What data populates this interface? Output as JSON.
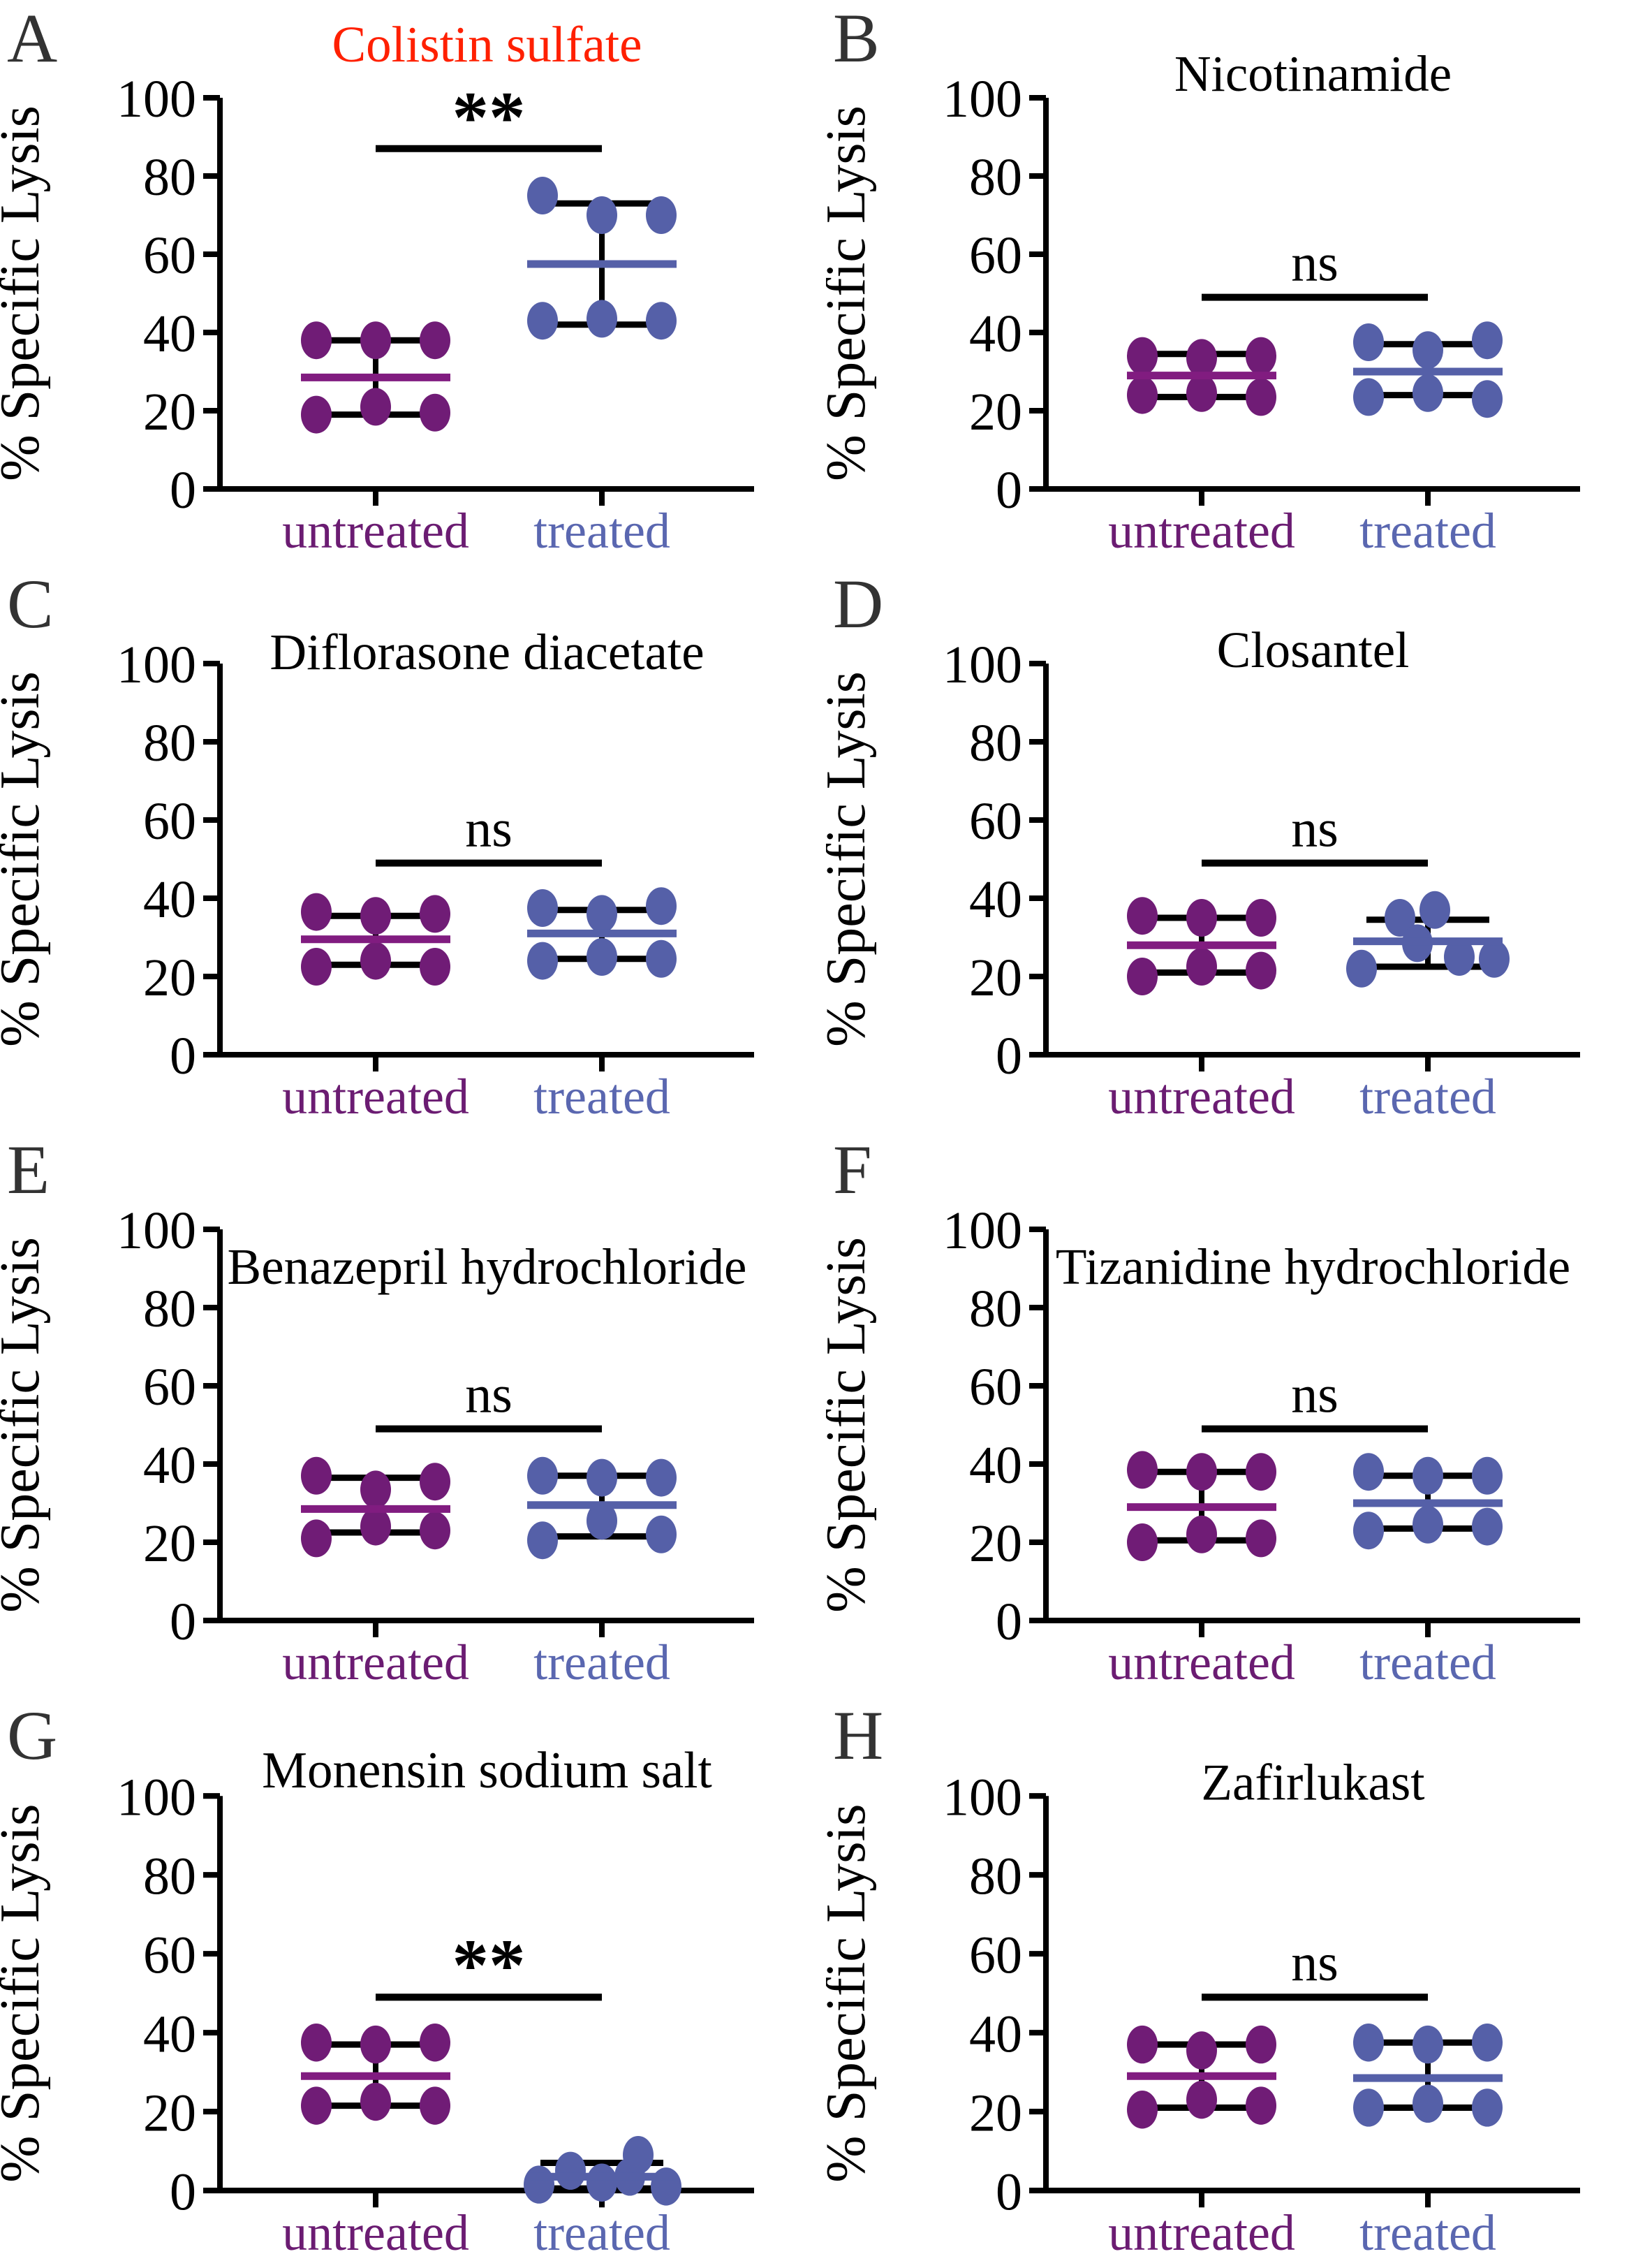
{
  "figure": {
    "ylabel": "% Specific Lysis",
    "yticks": [
      0,
      20,
      40,
      60,
      80,
      100
    ],
    "ylim": [
      0,
      100
    ],
    "group_labels": [
      "untreated",
      "treated"
    ],
    "colors": {
      "untreated_dot": "#701C76",
      "untreated_median": "#811C80",
      "untreated_label": "#6B1C72",
      "treated_dot": "#5560A8",
      "treated_median": "#5560A8",
      "treated_label": "#5A67B0",
      "axis": "#000000",
      "significance": "#000000",
      "panel_letter": "#333333",
      "title_highlight": "#FF2000",
      "title_default": "#000000"
    }
  },
  "chart_data": [
    {
      "type": "scatter",
      "letter": "A",
      "title": "Colistin sulfate",
      "title_color": "#FF2000",
      "title_y": 88,
      "significance": {
        "label": "**",
        "bar_value": 87
      },
      "ylabel": "% Specific Lysis",
      "groups": [
        {
          "label": "untreated",
          "median": 28.5,
          "whisker_low": 19,
          "whisker_high": 38,
          "points": [
            {
              "dx": -85,
              "v": 38
            },
            {
              "dx": 0,
              "v": 38
            },
            {
              "dx": 85,
              "v": 38
            },
            {
              "dx": -85,
              "v": 19
            },
            {
              "dx": 0,
              "v": 21
            },
            {
              "dx": 85,
              "v": 19.5
            }
          ]
        },
        {
          "label": "treated",
          "median": 57.5,
          "whisker_low": 42,
          "whisker_high": 73,
          "points": [
            {
              "dx": -85,
              "v": 75
            },
            {
              "dx": 0,
              "v": 70
            },
            {
              "dx": 85,
              "v": 70
            },
            {
              "dx": -85,
              "v": 43
            },
            {
              "dx": 0,
              "v": 43.5
            },
            {
              "dx": 85,
              "v": 43
            }
          ]
        }
      ]
    },
    {
      "type": "scatter",
      "letter": "B",
      "title": "Nicotinamide",
      "title_color": "#000000",
      "title_y": 130,
      "significance": {
        "label": "ns",
        "bar_value": 49
      },
      "ylabel": "% Specific Lysis",
      "groups": [
        {
          "label": "untreated",
          "median": 29,
          "whisker_low": 23.5,
          "whisker_high": 34.5,
          "points": [
            {
              "dx": -85,
              "v": 34
            },
            {
              "dx": 0,
              "v": 33.5
            },
            {
              "dx": 85,
              "v": 34
            },
            {
              "dx": -85,
              "v": 24
            },
            {
              "dx": 0,
              "v": 24.5
            },
            {
              "dx": 85,
              "v": 23.5
            }
          ]
        },
        {
          "label": "treated",
          "median": 30,
          "whisker_low": 24,
          "whisker_high": 37,
          "points": [
            {
              "dx": -85,
              "v": 37.5
            },
            {
              "dx": 0,
              "v": 35.5
            },
            {
              "dx": 85,
              "v": 38
            },
            {
              "dx": -85,
              "v": 23.5
            },
            {
              "dx": 0,
              "v": 24.5
            },
            {
              "dx": 85,
              "v": 23
            }
          ]
        }
      ]
    },
    {
      "type": "scatter",
      "letter": "C",
      "title": "Diflorasone diacetate",
      "title_color": "#000000",
      "title_y": 148,
      "significance": {
        "label": "ns",
        "bar_value": 49
      },
      "ylabel": "% Specific Lysis",
      "groups": [
        {
          "label": "untreated",
          "median": 29.5,
          "whisker_low": 23,
          "whisker_high": 35.5,
          "points": [
            {
              "dx": -85,
              "v": 36.5
            },
            {
              "dx": 0,
              "v": 35.5
            },
            {
              "dx": 85,
              "v": 36
            },
            {
              "dx": -85,
              "v": 22.5
            },
            {
              "dx": 0,
              "v": 24
            },
            {
              "dx": 85,
              "v": 22.5
            }
          ]
        },
        {
          "label": "treated",
          "median": 31,
          "whisker_low": 24.5,
          "whisker_high": 37,
          "points": [
            {
              "dx": -85,
              "v": 37.5
            },
            {
              "dx": 0,
              "v": 36
            },
            {
              "dx": 85,
              "v": 38
            },
            {
              "dx": -85,
              "v": 24
            },
            {
              "dx": 0,
              "v": 25
            },
            {
              "dx": 85,
              "v": 24.5
            }
          ]
        }
      ]
    },
    {
      "type": "scatter",
      "letter": "D",
      "title": "Closantel",
      "title_color": "#000000",
      "title_y": 145,
      "significance": {
        "label": "ns",
        "bar_value": 49
      },
      "ylabel": "% Specific Lysis",
      "groups": [
        {
          "label": "untreated",
          "median": 28,
          "whisker_low": 21,
          "whisker_high": 35,
          "points": [
            {
              "dx": -85,
              "v": 35.5
            },
            {
              "dx": 0,
              "v": 35
            },
            {
              "dx": 85,
              "v": 35
            },
            {
              "dx": -85,
              "v": 20
            },
            {
              "dx": 0,
              "v": 22.5
            },
            {
              "dx": 85,
              "v": 21.5
            }
          ]
        },
        {
          "label": "treated",
          "median": 29,
          "whisker_low": 22.5,
          "whisker_high": 34.5,
          "points": [
            {
              "dx": -95,
              "v": 22
            },
            {
              "dx": -40,
              "v": 35
            },
            {
              "dx": 10,
              "v": 37
            },
            {
              "dx": -15,
              "v": 28.5
            },
            {
              "dx": 45,
              "v": 25
            },
            {
              "dx": 95,
              "v": 24.5
            }
          ]
        }
      ]
    },
    {
      "type": "scatter",
      "letter": "E",
      "title": "Benazepril hydrochloride",
      "title_color": "#000000",
      "title_y": 218,
      "significance": {
        "label": "ns",
        "bar_value": 49
      },
      "ylabel": "% Specific Lysis",
      "groups": [
        {
          "label": "untreated",
          "median": 28.5,
          "whisker_low": 22.5,
          "whisker_high": 36.5,
          "points": [
            {
              "dx": -85,
              "v": 37
            },
            {
              "dx": 0,
              "v": 33.5
            },
            {
              "dx": 85,
              "v": 35.5
            },
            {
              "dx": -85,
              "v": 21
            },
            {
              "dx": 0,
              "v": 24
            },
            {
              "dx": 85,
              "v": 23
            }
          ]
        },
        {
          "label": "treated",
          "median": 29.5,
          "whisker_low": 21.5,
          "whisker_high": 37,
          "points": [
            {
              "dx": -85,
              "v": 37
            },
            {
              "dx": 0,
              "v": 36.5
            },
            {
              "dx": 85,
              "v": 36.5
            },
            {
              "dx": -85,
              "v": 20.5
            },
            {
              "dx": 0,
              "v": 25.5
            },
            {
              "dx": 85,
              "v": 22
            }
          ]
        }
      ]
    },
    {
      "type": "scatter",
      "letter": "F",
      "title": "Tizanidine hydrochloride",
      "title_color": "#000000",
      "title_y": 218,
      "significance": {
        "label": "ns",
        "bar_value": 49
      },
      "ylabel": "% Specific Lysis",
      "groups": [
        {
          "label": "untreated",
          "median": 29,
          "whisker_low": 20.5,
          "whisker_high": 38,
          "points": [
            {
              "dx": -85,
              "v": 38.5
            },
            {
              "dx": 0,
              "v": 38
            },
            {
              "dx": 85,
              "v": 38
            },
            {
              "dx": -85,
              "v": 20
            },
            {
              "dx": 0,
              "v": 22
            },
            {
              "dx": 85,
              "v": 21
            }
          ]
        },
        {
          "label": "treated",
          "median": 30,
          "whisker_low": 23.5,
          "whisker_high": 37,
          "points": [
            {
              "dx": -85,
              "v": 38
            },
            {
              "dx": 0,
              "v": 37
            },
            {
              "dx": 85,
              "v": 37
            },
            {
              "dx": -85,
              "v": 23
            },
            {
              "dx": 0,
              "v": 24.5
            },
            {
              "dx": 85,
              "v": 24
            }
          ]
        }
      ]
    },
    {
      "type": "scatter",
      "letter": "G",
      "title": "Monensin sodium salt",
      "title_color": "#000000",
      "title_y": 128,
      "significance": {
        "label": "**",
        "bar_value": 49
      },
      "ylabel": "% Specific Lysis",
      "groups": [
        {
          "label": "untreated",
          "median": 29,
          "whisker_low": 21.5,
          "whisker_high": 37,
          "points": [
            {
              "dx": -85,
              "v": 37.5
            },
            {
              "dx": 0,
              "v": 37
            },
            {
              "dx": 85,
              "v": 37.5
            },
            {
              "dx": -85,
              "v": 21.5
            },
            {
              "dx": 0,
              "v": 22.5
            },
            {
              "dx": 85,
              "v": 21.5
            }
          ]
        },
        {
          "label": "treated",
          "median": 3.5,
          "whisker_low": 0.5,
          "whisker_high": 7,
          "points": [
            {
              "dx": -90,
              "v": 1.5
            },
            {
              "dx": -45,
              "v": 5
            },
            {
              "dx": 0,
              "v": 2
            },
            {
              "dx": 40,
              "v": 3.5
            },
            {
              "dx": 52,
              "v": 9
            },
            {
              "dx": 92,
              "v": 1
            }
          ]
        }
      ]
    },
    {
      "type": "scatter",
      "letter": "H",
      "title": "Zafirlukast",
      "title_color": "#000000",
      "title_y": 145,
      "significance": {
        "label": "ns",
        "bar_value": 49
      },
      "ylabel": "% Specific Lysis",
      "groups": [
        {
          "label": "untreated",
          "median": 29,
          "whisker_low": 21,
          "whisker_high": 37,
          "points": [
            {
              "dx": -85,
              "v": 37
            },
            {
              "dx": 0,
              "v": 35.5
            },
            {
              "dx": 85,
              "v": 37
            },
            {
              "dx": -85,
              "v": 20.5
            },
            {
              "dx": 0,
              "v": 23
            },
            {
              "dx": 85,
              "v": 21.5
            }
          ]
        },
        {
          "label": "treated",
          "median": 28.5,
          "whisker_low": 21,
          "whisker_high": 37.5,
          "points": [
            {
              "dx": -85,
              "v": 37.5
            },
            {
              "dx": 0,
              "v": 37
            },
            {
              "dx": 85,
              "v": 37.5
            },
            {
              "dx": -85,
              "v": 21
            },
            {
              "dx": 0,
              "v": 22
            },
            {
              "dx": 85,
              "v": 21
            }
          ]
        }
      ]
    }
  ]
}
